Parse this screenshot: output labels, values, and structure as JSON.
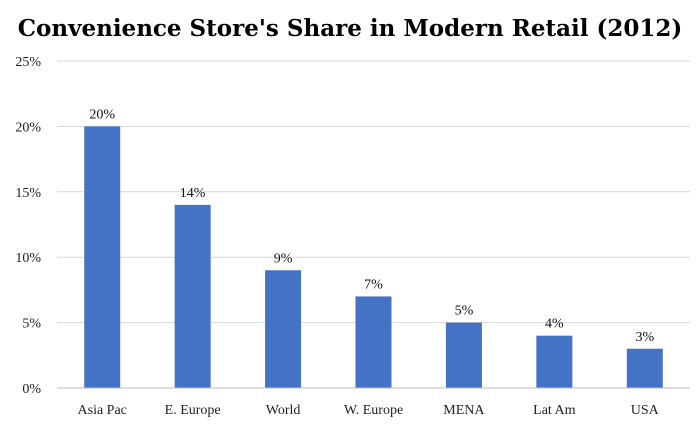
{
  "chart_data": {
    "type": "bar",
    "title": "Convenience Store's Share in Modern Retail (2012)",
    "xlabel": "",
    "ylabel": "",
    "categories": [
      "Asia Pac",
      "E. Europe",
      "World",
      "W. Europe",
      "MENA",
      "Lat Am",
      "USA"
    ],
    "values": [
      20,
      14,
      9,
      7,
      5,
      4,
      3
    ],
    "data_labels": [
      "20%",
      "14%",
      "9%",
      "7%",
      "5%",
      "4%",
      "3%"
    ],
    "ylim": [
      0,
      25
    ],
    "yticks": [
      0,
      5,
      10,
      15,
      20,
      25
    ],
    "ytick_labels": [
      "0%",
      "5%",
      "10%",
      "15%",
      "20%",
      "25%"
    ],
    "grid": true,
    "legend": "none",
    "bar_color": "#4472C4"
  }
}
